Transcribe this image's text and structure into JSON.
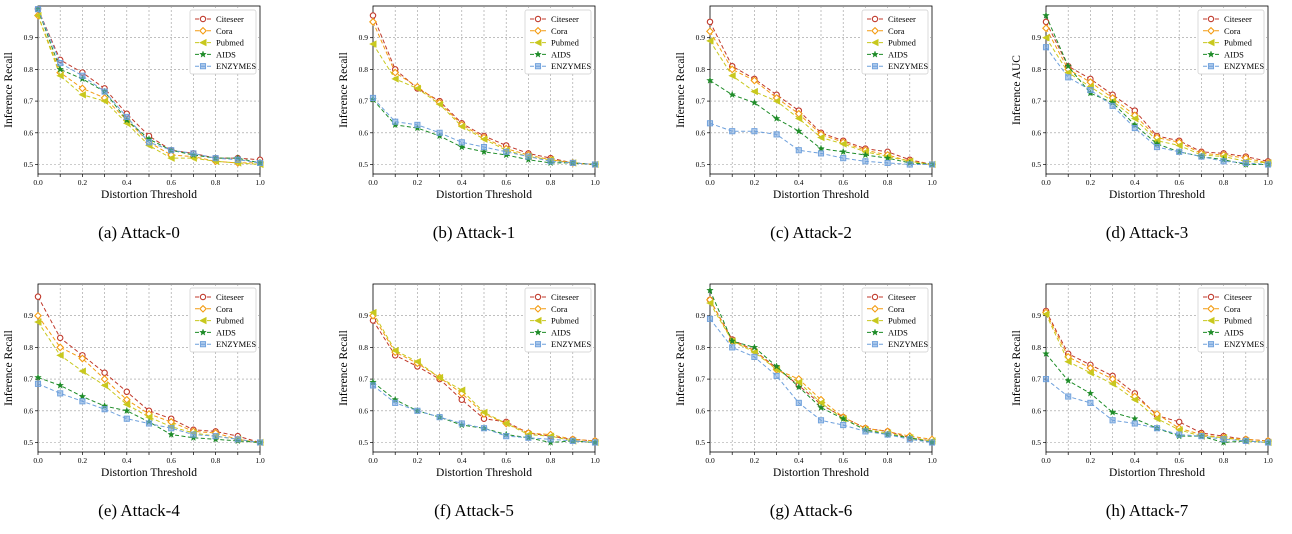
{
  "figure": {
    "series_styles": [
      {
        "name": "Citeseer",
        "color": "#c0392b",
        "marker": "open-circle"
      },
      {
        "name": "Cora",
        "color": "#f39c12",
        "marker": "open-diamond"
      },
      {
        "name": "Pubmed",
        "color": "#c8c81e",
        "marker": "triangle-left"
      },
      {
        "name": "AIDS",
        "color": "#1e8c28",
        "marker": "star"
      },
      {
        "name": "ENZYMES",
        "color": "#6ea0dc",
        "marker": "square"
      }
    ]
  },
  "chart_data": [
    {
      "type": "line",
      "caption": "(a)  Attack-0",
      "xlabel": "Distortion Threshold",
      "ylabel": "Inference Recall",
      "xlim": [
        0,
        1
      ],
      "ylim": [
        0.47,
        1.0
      ],
      "xticks": [
        "0.0",
        "0.2",
        "0.4",
        "0.6",
        "0.8",
        "1.0"
      ],
      "yticks": [
        "0.5",
        "0.6",
        "0.7",
        "0.8",
        "0.9"
      ],
      "grid": true,
      "legend": "top-right",
      "x": [
        0.0,
        0.1,
        0.2,
        0.3,
        0.4,
        0.5,
        0.6,
        0.7,
        0.8,
        0.9,
        1.0
      ],
      "series": [
        {
          "name": "Citeseer",
          "values": [
            0.99,
            0.83,
            0.79,
            0.74,
            0.66,
            0.59,
            0.545,
            0.535,
            0.52,
            0.52,
            0.515
          ]
        },
        {
          "name": "Cora",
          "values": [
            0.97,
            0.79,
            0.74,
            0.71,
            0.64,
            0.57,
            0.53,
            0.525,
            0.51,
            0.505,
            0.505
          ]
        },
        {
          "name": "Pubmed",
          "values": [
            0.97,
            0.78,
            0.72,
            0.7,
            0.63,
            0.56,
            0.52,
            0.52,
            0.51,
            0.505,
            0.5
          ]
        },
        {
          "name": "AIDS",
          "values": [
            0.99,
            0.8,
            0.77,
            0.73,
            0.64,
            0.58,
            0.545,
            0.53,
            0.52,
            0.52,
            0.505
          ]
        },
        {
          "name": "ENZYMES",
          "values": [
            0.99,
            0.82,
            0.78,
            0.73,
            0.65,
            0.57,
            0.545,
            0.535,
            0.52,
            0.515,
            0.505
          ]
        }
      ]
    },
    {
      "type": "line",
      "caption": "(b)  Attack-1",
      "xlabel": "Distortion Threshold",
      "ylabel": "Inference Recall",
      "xlim": [
        0,
        1
      ],
      "ylim": [
        0.47,
        1.0
      ],
      "xticks": [
        "0.0",
        "0.2",
        "0.4",
        "0.6",
        "0.8",
        "1.0"
      ],
      "yticks": [
        "0.5",
        "0.6",
        "0.7",
        "0.8",
        "0.9"
      ],
      "grid": true,
      "legend": "top-right",
      "x": [
        0.0,
        0.1,
        0.2,
        0.3,
        0.4,
        0.5,
        0.6,
        0.7,
        0.8,
        0.9,
        1.0
      ],
      "series": [
        {
          "name": "Citeseer",
          "values": [
            0.97,
            0.8,
            0.74,
            0.7,
            0.63,
            0.59,
            0.56,
            0.535,
            0.52,
            0.505,
            0.5
          ]
        },
        {
          "name": "Cora",
          "values": [
            0.95,
            0.79,
            0.745,
            0.695,
            0.625,
            0.585,
            0.55,
            0.53,
            0.515,
            0.505,
            0.5
          ]
        },
        {
          "name": "Pubmed",
          "values": [
            0.88,
            0.77,
            0.74,
            0.69,
            0.62,
            0.58,
            0.545,
            0.525,
            0.515,
            0.505,
            0.5
          ]
        },
        {
          "name": "AIDS",
          "values": [
            0.705,
            0.625,
            0.615,
            0.59,
            0.555,
            0.54,
            0.53,
            0.515,
            0.505,
            0.505,
            0.5
          ]
        },
        {
          "name": "ENZYMES",
          "values": [
            0.71,
            0.635,
            0.625,
            0.6,
            0.57,
            0.555,
            0.54,
            0.525,
            0.51,
            0.505,
            0.5
          ]
        }
      ]
    },
    {
      "type": "line",
      "caption": "(c)  Attack-2",
      "xlabel": "Distortion Threshold",
      "ylabel": "Inference Recall",
      "xlim": [
        0,
        1
      ],
      "ylim": [
        0.47,
        1.0
      ],
      "xticks": [
        "0.0",
        "0.2",
        "0.4",
        "0.6",
        "0.8",
        "1.0"
      ],
      "yticks": [
        "0.5",
        "0.6",
        "0.7",
        "0.8",
        "0.9"
      ],
      "grid": true,
      "legend": "top-right",
      "x": [
        0.0,
        0.1,
        0.2,
        0.3,
        0.4,
        0.5,
        0.6,
        0.7,
        0.8,
        0.9,
        1.0
      ],
      "series": [
        {
          "name": "Citeseer",
          "values": [
            0.95,
            0.81,
            0.77,
            0.72,
            0.67,
            0.6,
            0.575,
            0.55,
            0.54,
            0.515,
            0.5
          ]
        },
        {
          "name": "Cora",
          "values": [
            0.92,
            0.8,
            0.765,
            0.71,
            0.66,
            0.595,
            0.57,
            0.545,
            0.53,
            0.51,
            0.5
          ]
        },
        {
          "name": "Pubmed",
          "values": [
            0.89,
            0.78,
            0.73,
            0.7,
            0.645,
            0.585,
            0.565,
            0.54,
            0.525,
            0.51,
            0.5
          ]
        },
        {
          "name": "AIDS",
          "values": [
            0.765,
            0.72,
            0.695,
            0.645,
            0.605,
            0.55,
            0.54,
            0.53,
            0.52,
            0.505,
            0.5
          ]
        },
        {
          "name": "ENZYMES",
          "values": [
            0.63,
            0.605,
            0.605,
            0.595,
            0.545,
            0.535,
            0.52,
            0.51,
            0.505,
            0.5,
            0.5
          ]
        }
      ]
    },
    {
      "type": "line",
      "caption": "(d)  Attack-3",
      "xlabel": "Distortion Threshold",
      "ylabel": "Inference AUC",
      "xlim": [
        0,
        1
      ],
      "ylim": [
        0.47,
        1.0
      ],
      "xticks": [
        "0.0",
        "0.2",
        "0.4",
        "0.6",
        "0.8",
        "1.0"
      ],
      "yticks": [
        "0.5",
        "0.6",
        "0.7",
        "0.8",
        "0.9"
      ],
      "grid": true,
      "legend": "top-right",
      "x": [
        0.0,
        0.1,
        0.2,
        0.3,
        0.4,
        0.5,
        0.6,
        0.7,
        0.8,
        0.9,
        1.0
      ],
      "series": [
        {
          "name": "Citeseer",
          "values": [
            0.95,
            0.81,
            0.77,
            0.72,
            0.67,
            0.59,
            0.575,
            0.54,
            0.535,
            0.525,
            0.51
          ]
        },
        {
          "name": "Cora",
          "values": [
            0.93,
            0.8,
            0.76,
            0.71,
            0.655,
            0.585,
            0.57,
            0.535,
            0.53,
            0.52,
            0.505
          ]
        },
        {
          "name": "Pubmed",
          "values": [
            0.9,
            0.79,
            0.745,
            0.7,
            0.645,
            0.575,
            0.56,
            0.53,
            0.525,
            0.51,
            0.505
          ]
        },
        {
          "name": "AIDS",
          "values": [
            0.97,
            0.81,
            0.725,
            0.695,
            0.625,
            0.565,
            0.54,
            0.525,
            0.515,
            0.5,
            0.5
          ]
        },
        {
          "name": "ENZYMES",
          "values": [
            0.87,
            0.775,
            0.735,
            0.685,
            0.615,
            0.555,
            0.54,
            0.525,
            0.51,
            0.505,
            0.5
          ]
        }
      ]
    },
    {
      "type": "line",
      "caption": "(e)  Attack-4",
      "xlabel": "Distortion Threshold",
      "ylabel": "Inference Recall",
      "xlim": [
        0,
        1
      ],
      "ylim": [
        0.47,
        1.0
      ],
      "xticks": [
        "0.0",
        "0.2",
        "0.4",
        "0.6",
        "0.8",
        "1.0"
      ],
      "yticks": [
        "0.5",
        "0.6",
        "0.7",
        "0.8",
        "0.9"
      ],
      "grid": true,
      "legend": "top-right",
      "x": [
        0.0,
        0.1,
        0.2,
        0.3,
        0.4,
        0.5,
        0.6,
        0.7,
        0.8,
        0.9,
        1.0
      ],
      "series": [
        {
          "name": "Citeseer",
          "values": [
            0.96,
            0.83,
            0.775,
            0.72,
            0.66,
            0.6,
            0.575,
            0.54,
            0.535,
            0.52,
            0.5
          ]
        },
        {
          "name": "Cora",
          "values": [
            0.9,
            0.8,
            0.765,
            0.7,
            0.635,
            0.59,
            0.565,
            0.535,
            0.53,
            0.51,
            0.5
          ]
        },
        {
          "name": "Pubmed",
          "values": [
            0.88,
            0.775,
            0.725,
            0.68,
            0.62,
            0.58,
            0.55,
            0.53,
            0.52,
            0.51,
            0.5
          ]
        },
        {
          "name": "AIDS",
          "values": [
            0.705,
            0.68,
            0.645,
            0.615,
            0.6,
            0.565,
            0.525,
            0.515,
            0.51,
            0.505,
            0.5
          ]
        },
        {
          "name": "ENZYMES",
          "values": [
            0.685,
            0.655,
            0.63,
            0.605,
            0.575,
            0.56,
            0.545,
            0.525,
            0.52,
            0.51,
            0.5
          ]
        }
      ]
    },
    {
      "type": "line",
      "caption": "(f)  Attack-5",
      "xlabel": "Distortion Threshold",
      "ylabel": "Inference Recall",
      "xlim": [
        0,
        1
      ],
      "ylim": [
        0.47,
        1.0
      ],
      "xticks": [
        "0.0",
        "0.2",
        "0.4",
        "0.6",
        "0.8",
        "1.0"
      ],
      "yticks": [
        "0.5",
        "0.6",
        "0.7",
        "0.8",
        "0.9"
      ],
      "grid": true,
      "legend": "top-right",
      "x": [
        0.0,
        0.1,
        0.2,
        0.3,
        0.4,
        0.5,
        0.6,
        0.7,
        0.8,
        0.9,
        1.0
      ],
      "series": [
        {
          "name": "Citeseer",
          "values": [
            0.885,
            0.775,
            0.74,
            0.7,
            0.635,
            0.575,
            0.565,
            0.53,
            0.52,
            0.51,
            0.505
          ]
        },
        {
          "name": "Cora",
          "values": [
            0.9,
            0.785,
            0.75,
            0.705,
            0.655,
            0.59,
            0.56,
            0.53,
            0.525,
            0.51,
            0.505
          ]
        },
        {
          "name": "Pubmed",
          "values": [
            0.91,
            0.79,
            0.755,
            0.705,
            0.665,
            0.595,
            0.56,
            0.525,
            0.52,
            0.505,
            0.5
          ]
        },
        {
          "name": "AIDS",
          "values": [
            0.69,
            0.635,
            0.6,
            0.58,
            0.555,
            0.545,
            0.525,
            0.515,
            0.5,
            0.505,
            0.5
          ]
        },
        {
          "name": "ENZYMES",
          "values": [
            0.68,
            0.625,
            0.6,
            0.58,
            0.56,
            0.545,
            0.52,
            0.515,
            0.51,
            0.505,
            0.5
          ]
        }
      ]
    },
    {
      "type": "line",
      "caption": "(g)  Attack-6",
      "xlabel": "Distortion Threshold",
      "ylabel": "Inference Recall",
      "xlim": [
        0,
        1
      ],
      "ylim": [
        0.47,
        1.0
      ],
      "xticks": [
        "0.0",
        "0.2",
        "0.4",
        "0.6",
        "0.8",
        "1.0"
      ],
      "yticks": [
        "0.5",
        "0.6",
        "0.7",
        "0.8",
        "0.9"
      ],
      "grid": true,
      "legend": "top-right",
      "x": [
        0.0,
        0.1,
        0.2,
        0.3,
        0.4,
        0.5,
        0.6,
        0.7,
        0.8,
        0.9,
        1.0
      ],
      "series": [
        {
          "name": "Citeseer",
          "values": [
            0.95,
            0.825,
            0.79,
            0.735,
            0.68,
            0.62,
            0.58,
            0.545,
            0.535,
            0.515,
            0.505
          ]
        },
        {
          "name": "Cora",
          "values": [
            0.95,
            0.82,
            0.79,
            0.73,
            0.7,
            0.635,
            0.58,
            0.545,
            0.535,
            0.52,
            0.51
          ]
        },
        {
          "name": "Pubmed",
          "values": [
            0.94,
            0.82,
            0.785,
            0.73,
            0.69,
            0.625,
            0.575,
            0.54,
            0.53,
            0.515,
            0.505
          ]
        },
        {
          "name": "AIDS",
          "values": [
            0.98,
            0.82,
            0.8,
            0.74,
            0.675,
            0.61,
            0.575,
            0.54,
            0.525,
            0.515,
            0.5
          ]
        },
        {
          "name": "ENZYMES",
          "values": [
            0.89,
            0.8,
            0.77,
            0.71,
            0.625,
            0.57,
            0.555,
            0.535,
            0.525,
            0.51,
            0.5
          ]
        }
      ]
    },
    {
      "type": "line",
      "caption": "(h)  Attack-7",
      "xlabel": "Distortion Threshold",
      "ylabel": "Inference Recall",
      "xlim": [
        0,
        1
      ],
      "ylim": [
        0.47,
        1.0
      ],
      "xticks": [
        "0.0",
        "0.2",
        "0.4",
        "0.6",
        "0.8",
        "1.0"
      ],
      "yticks": [
        "0.5",
        "0.6",
        "0.7",
        "0.8",
        "0.9"
      ],
      "grid": true,
      "legend": "top-right",
      "x": [
        0.0,
        0.1,
        0.2,
        0.3,
        0.4,
        0.5,
        0.6,
        0.7,
        0.8,
        0.9,
        1.0
      ],
      "series": [
        {
          "name": "Citeseer",
          "values": [
            0.915,
            0.78,
            0.745,
            0.71,
            0.655,
            0.585,
            0.565,
            0.53,
            0.52,
            0.51,
            0.505
          ]
        },
        {
          "name": "Cora",
          "values": [
            0.91,
            0.77,
            0.735,
            0.7,
            0.645,
            0.59,
            0.545,
            0.525,
            0.515,
            0.51,
            0.505
          ]
        },
        {
          "name": "Pubmed",
          "values": [
            0.905,
            0.755,
            0.72,
            0.685,
            0.635,
            0.575,
            0.54,
            0.52,
            0.515,
            0.505,
            0.5
          ]
        },
        {
          "name": "AIDS",
          "values": [
            0.78,
            0.695,
            0.655,
            0.595,
            0.575,
            0.545,
            0.52,
            0.52,
            0.5,
            0.505,
            0.5
          ]
        },
        {
          "name": "ENZYMES",
          "values": [
            0.7,
            0.645,
            0.625,
            0.57,
            0.56,
            0.545,
            0.525,
            0.52,
            0.51,
            0.505,
            0.5
          ]
        }
      ]
    }
  ]
}
